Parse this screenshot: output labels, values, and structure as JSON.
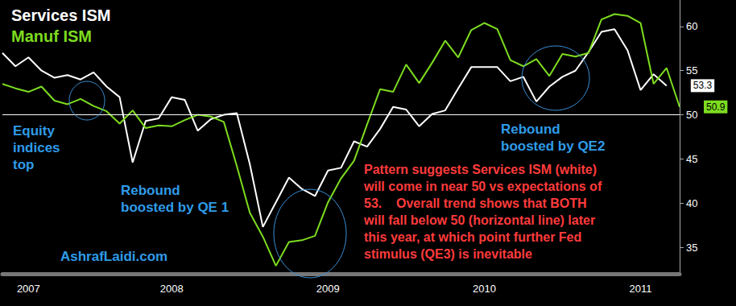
{
  "chart_data": {
    "type": "line",
    "categories": [
      null,
      null,
      "2007",
      null,
      null,
      null,
      null,
      null,
      null,
      null,
      null,
      null,
      null,
      "2008",
      null,
      null,
      null,
      null,
      null,
      null,
      null,
      null,
      null,
      null,
      null,
      "2009",
      null,
      null,
      null,
      null,
      null,
      null,
      null,
      null,
      null,
      null,
      null,
      "2010",
      null,
      null,
      null,
      null,
      null,
      null,
      null,
      null,
      null,
      null,
      null,
      "2011",
      null,
      null,
      null
    ],
    "series": [
      {
        "name": "Services ISM",
        "color": "#ffffff",
        "values": [
          57.0,
          55.5,
          56.5,
          55.0,
          54.2,
          54.5,
          54.0,
          54.8,
          53.2,
          52.0,
          44.6,
          49.3,
          49.6,
          52.0,
          51.7,
          48.2,
          49.5,
          50.0,
          50.2,
          44.4,
          37.3,
          40.1,
          42.9,
          41.6,
          40.8,
          43.7,
          44.0,
          47.0,
          46.4,
          48.4,
          50.9,
          50.6,
          48.7,
          50.1,
          50.5,
          53.0,
          55.4,
          55.4,
          55.4,
          53.8,
          54.3,
          51.5,
          53.2,
          54.3,
          55.0,
          57.1,
          59.4,
          59.7,
          57.3,
          52.8,
          54.6,
          53.3,
          null
        ],
        "value_labels": [
          null,
          null,
          null,
          null,
          null,
          null,
          null,
          null,
          null,
          null,
          null,
          null,
          null,
          null,
          null,
          null,
          null,
          null,
          null,
          null,
          null,
          null,
          null,
          null,
          null,
          null,
          null,
          null,
          null,
          null,
          null,
          null,
          null,
          null,
          null,
          null,
          null,
          null,
          null,
          null,
          null,
          null,
          null,
          null,
          null,
          null,
          null,
          null,
          null,
          null,
          null,
          "53.3",
          null
        ]
      },
      {
        "name": "Manuf ISM",
        "color": "#7ddc1f",
        "values": [
          53.5,
          53.0,
          52.6,
          53.2,
          51.6,
          51.2,
          51.8,
          51.0,
          50.4,
          49.0,
          50.5,
          48.5,
          48.8,
          48.7,
          49.4,
          50.0,
          49.8,
          49.2,
          44.2,
          38.9,
          36.2,
          32.9,
          35.6,
          35.8,
          36.3,
          40.1,
          42.8,
          44.8,
          48.9,
          52.9,
          52.6,
          55.7,
          53.6,
          55.9,
          58.4,
          56.5,
          59.6,
          60.4,
          59.7,
          56.2,
          55.5,
          56.3,
          54.4,
          56.9,
          56.6,
          57.0,
          60.8,
          61.4,
          61.2,
          60.4,
          53.5,
          55.3,
          50.9
        ],
        "value_labels": [
          null,
          null,
          null,
          null,
          null,
          null,
          null,
          null,
          null,
          null,
          null,
          null,
          null,
          null,
          null,
          null,
          null,
          null,
          null,
          null,
          null,
          null,
          null,
          null,
          null,
          null,
          null,
          null,
          null,
          null,
          null,
          null,
          null,
          null,
          null,
          null,
          null,
          null,
          null,
          null,
          null,
          null,
          null,
          null,
          null,
          null,
          null,
          null,
          null,
          null,
          null,
          null,
          "50.9"
        ]
      }
    ],
    "ylim": [
      32,
      63
    ],
    "yticks": [
      35,
      40,
      45,
      50,
      55,
      60
    ],
    "hline": 50,
    "grid": false,
    "legend": "upper left",
    "annotations": [
      {
        "text": "Equity\nindices\ntop",
        "color": "#2f9be8"
      },
      {
        "text": "Rebound\nboosted by QE 1",
        "color": "#2f9be8"
      },
      {
        "text": "Rebound\nboosted by QE2",
        "color": "#2f9be8"
      },
      {
        "text": "Pattern suggests Services ISM (white)\nwill come in near 50 vs expectations of\n53.    Overall trend shows that BOTH\nwill fall below 50 (horizontal line) later\nthis year, at which point further Fed\nstimulus (QE3) is inevitable",
        "color": "#ff3b3b"
      },
      {
        "text": "AshrafLaidi.com",
        "color": "#2f9be8"
      }
    ]
  }
}
